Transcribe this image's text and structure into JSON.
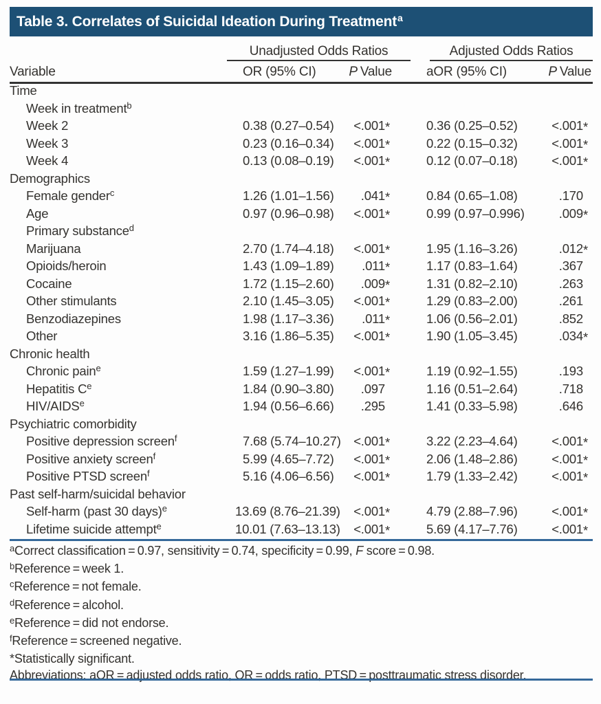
{
  "title": {
    "label": "Table 3. Correlates of Suicidal Ideation During Treatment",
    "sup": "a"
  },
  "header": {
    "variable": "Variable",
    "group_unadjusted": "Unadjusted Odds Ratios",
    "group_adjusted": "Adjusted Odds Ratios",
    "or": "OR (95% CI)",
    "aor": "aOR (95% CI)",
    "p_italic": "P",
    "p_rest": "Value"
  },
  "rows": [
    {
      "label": "Time",
      "indent": 0
    },
    {
      "label": "Week in treatment",
      "sup": "b",
      "indent": 1
    },
    {
      "label": "Week 2",
      "indent": 1,
      "or": "0.38 (0.27–0.54)",
      "p": "<.001*",
      "aor": "0.36 (0.25–0.52)",
      "ap": "<.001*"
    },
    {
      "label": "Week 3",
      "indent": 1,
      "or": "0.23 (0.16–0.34)",
      "p": "<.001*",
      "aor": "0.22 (0.15–0.32)",
      "ap": "<.001*"
    },
    {
      "label": "Week 4",
      "indent": 1,
      "or": "0.13 (0.08–0.19)",
      "p": "<.001*",
      "aor": "0.12 (0.07–0.18)",
      "ap": "<.001*"
    },
    {
      "label": "Demographics",
      "indent": 0
    },
    {
      "label": "Female gender",
      "sup": "c",
      "indent": 1,
      "or": "1.26 (1.01–1.56)",
      "p": ".041*",
      "aor": "0.84 (0.65–1.08)",
      "ap": ".170"
    },
    {
      "label": "Age",
      "indent": 1,
      "or": "0.97 (0.96–0.98)",
      "p": "<.001*",
      "aor": "0.99 (0.97–0.996)",
      "ap": ".009*"
    },
    {
      "label": "Primary substance",
      "sup": "d",
      "indent": 1
    },
    {
      "label": "Marijuana",
      "indent": 1,
      "or": "2.70 (1.74–4.18)",
      "p": "<.001*",
      "aor": "1.95 (1.16–3.26)",
      "ap": ".012*"
    },
    {
      "label": "Opioids/heroin",
      "indent": 1,
      "or": "1.43 (1.09–1.89)",
      "p": ".011*",
      "aor": "1.17 (0.83–1.64)",
      "ap": ".367"
    },
    {
      "label": "Cocaine",
      "indent": 1,
      "or": "1.72 (1.15–2.60)",
      "p": ".009*",
      "aor": "1.31 (0.82–2.10)",
      "ap": ".263"
    },
    {
      "label": "Other stimulants",
      "indent": 1,
      "or": "2.10 (1.45–3.05)",
      "p": "<.001*",
      "aor": "1.29 (0.83–2.00)",
      "ap": ".261"
    },
    {
      "label": "Benzodiazepines",
      "indent": 1,
      "or": "1.98 (1.17–3.36)",
      "p": ".011*",
      "aor": "1.06 (0.56–2.01)",
      "ap": ".852"
    },
    {
      "label": "Other",
      "indent": 1,
      "or": "3.16 (1.86–5.35)",
      "p": "<.001*",
      "aor": "1.90 (1.05–3.45)",
      "ap": ".034*"
    },
    {
      "label": "Chronic health",
      "indent": 0
    },
    {
      "label": "Chronic pain",
      "sup": "e",
      "indent": 1,
      "or": "1.59 (1.27–1.99)",
      "p": "<.001*",
      "aor": "1.19 (0.92–1.55)",
      "ap": ".193"
    },
    {
      "label": "Hepatitis C",
      "sup": "e",
      "indent": 1,
      "or": "1.84 (0.90–3.80)",
      "p": ".097",
      "aor": "1.16 (0.51–2.64)",
      "ap": ".718"
    },
    {
      "label": "HIV/AIDS",
      "sup": "e",
      "indent": 1,
      "or": "1.94 (0.56–6.66)",
      "p": ".295",
      "aor": "1.41 (0.33–5.98)",
      "ap": ".646"
    },
    {
      "label": "Psychiatric comorbidity",
      "indent": 0
    },
    {
      "label": "Positive depression screen",
      "sup": "f",
      "indent": 1,
      "or": "7.68 (5.74–10.27)",
      "p": "<.001*",
      "aor": "3.22 (2.23–4.64)",
      "ap": "<.001*"
    },
    {
      "label": "Positive anxiety screen",
      "sup": "f",
      "indent": 1,
      "or": "5.99 (4.65–7.72)",
      "p": "<.001*",
      "aor": "2.06 (1.48–2.86)",
      "ap": "<.001*"
    },
    {
      "label": "Positive PTSD screen",
      "sup": "f",
      "indent": 1,
      "or": "5.16 (4.06–6.56)",
      "p": "<.001*",
      "aor": "1.79 (1.33–2.42)",
      "ap": "<.001*"
    },
    {
      "label": "Past self-harm/suicidal behavior",
      "indent": 0
    },
    {
      "label": "Self-harm (past 30 days)",
      "sup": "e",
      "indent": 1,
      "or": "13.69 (8.76–21.39)",
      "p": "<.001*",
      "aor": "4.79 (2.88–7.96)",
      "ap": "<.001*"
    },
    {
      "label": "Lifetime suicide attempt",
      "sup": "e",
      "indent": 1,
      "or": "10.01 (7.63–13.13)",
      "p": "<.001*",
      "aor": "5.69 (4.17–7.76)",
      "ap": "<.001*"
    }
  ],
  "footnotes": [
    {
      "marker": "a",
      "sup": true,
      "segments": [
        {
          "t": "Correct classification = 0.97, sensitivity = 0.74, specificity = 0.99, "
        },
        {
          "t": "F",
          "italic": true
        },
        {
          "t": " score = 0.98."
        }
      ]
    },
    {
      "marker": "b",
      "sup": true,
      "segments": [
        {
          "t": "Reference = week 1."
        }
      ]
    },
    {
      "marker": "c",
      "sup": true,
      "segments": [
        {
          "t": "Reference = not female."
        }
      ]
    },
    {
      "marker": "d",
      "sup": true,
      "segments": [
        {
          "t": "Reference = alcohol."
        }
      ]
    },
    {
      "marker": "e",
      "sup": true,
      "segments": [
        {
          "t": "Reference = did not endorse."
        }
      ]
    },
    {
      "marker": "f",
      "sup": true,
      "segments": [
        {
          "t": "Reference = screened negative."
        }
      ]
    },
    {
      "marker": "*",
      "sup": false,
      "segments": [
        {
          "t": "Statistically significant."
        }
      ]
    },
    {
      "marker": "",
      "sup": false,
      "segments": [
        {
          "t": "Abbreviations: aOR = adjusted odds ratio, OR = odds ratio, PTSD = posttraumatic stress disorder."
        }
      ]
    }
  ],
  "colors": {
    "header_bar": "#1d5075",
    "rule_blue": "#35699a",
    "rule_dark": "#333333",
    "text": "#34322f"
  }
}
